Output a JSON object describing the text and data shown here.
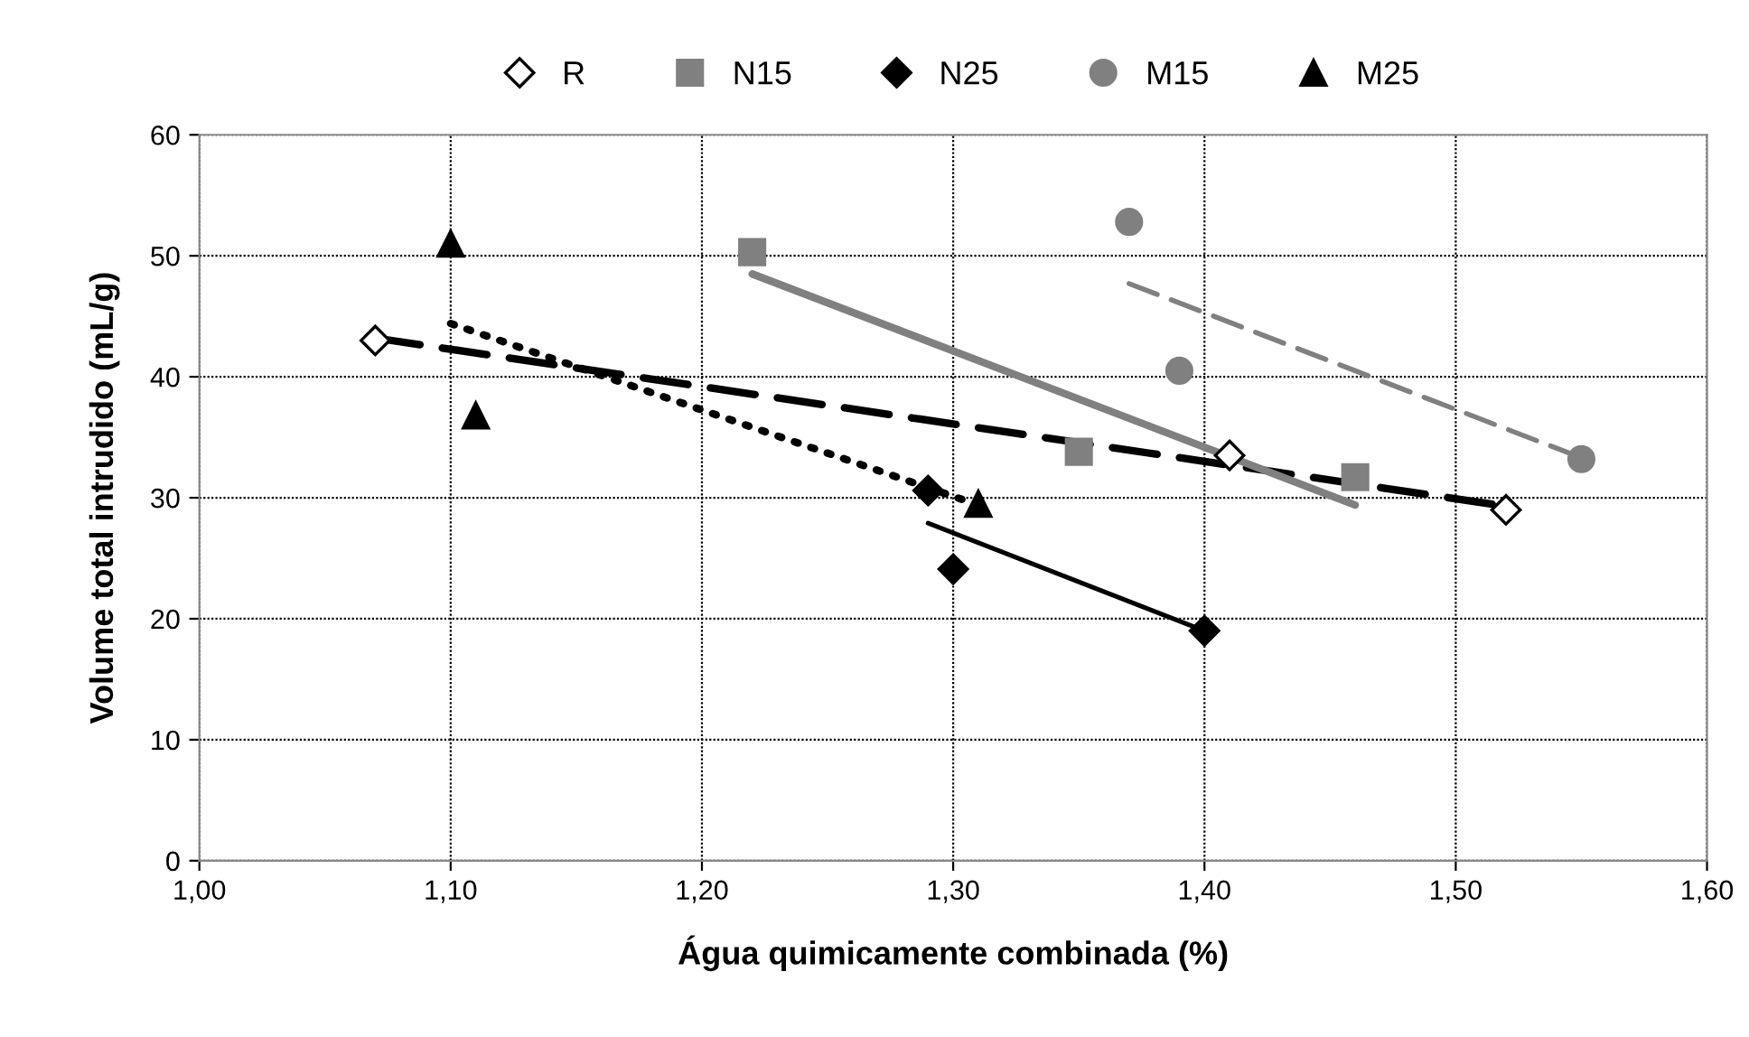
{
  "chart_data": {
    "type": "scatter",
    "xlabel": "Água quimicamente combinada (%)",
    "ylabel": "Volume total intrudido (mL/g)",
    "xlim": [
      1.0,
      1.6
    ],
    "xticks": [
      {
        "value": 1.0,
        "label": "1,00"
      },
      {
        "value": 1.1,
        "label": "1,10"
      },
      {
        "value": 1.2,
        "label": "1,20"
      },
      {
        "value": 1.3,
        "label": "1,30"
      },
      {
        "value": 1.4,
        "label": "1,40"
      },
      {
        "value": 1.5,
        "label": "1,50"
      },
      {
        "value": 1.6,
        "label": "1,60"
      }
    ],
    "ylim": [
      0,
      60
    ],
    "yticks": [
      0,
      10,
      20,
      30,
      40,
      50,
      60
    ],
    "grid": true,
    "legend": "top",
    "series": [
      {
        "name": "R",
        "color": "#000000",
        "marker": "diamond",
        "x": [
          1.07,
          1.41,
          1.52
        ],
        "values": [
          43,
          33.5,
          29
        ]
      },
      {
        "name": "N15",
        "color": "#808080",
        "marker": "square",
        "x": [
          1.22,
          1.35,
          1.46
        ],
        "values": [
          50.3,
          33.8,
          31.7
        ]
      },
      {
        "name": "N25",
        "color": "#000000",
        "marker": "diamond",
        "x": [
          1.29,
          1.3,
          1.4
        ],
        "values": [
          30.6,
          24.1,
          19
        ]
      },
      {
        "name": "M15",
        "color": "#808080",
        "marker": "circle",
        "x": [
          1.37,
          1.39,
          1.55
        ],
        "values": [
          52.8,
          40.5,
          33.2
        ]
      },
      {
        "name": "M25",
        "color": "#000000",
        "marker": "triangle",
        "x": [
          1.1,
          1.11,
          1.31
        ],
        "values": [
          51,
          36.8,
          29.5
        ]
      },
      {
        "type": "line",
        "color": "#000000",
        "line_style": "dashed",
        "x": [
          1.07,
          1.52
        ],
        "values": [
          43.2,
          29.3
        ]
      },
      {
        "type": "line",
        "color": "#808080",
        "line_style": "solid",
        "x": [
          1.22,
          1.46
        ],
        "values": [
          48.5,
          29.4
        ]
      },
      {
        "type": "line",
        "color": "#000000",
        "line_style": "solid",
        "x": [
          1.29,
          1.4
        ],
        "values": [
          27.9,
          19
        ]
      },
      {
        "type": "line",
        "color": "#808080",
        "line_style": "dashed",
        "x": [
          1.37,
          1.55
        ],
        "values": [
          47.7,
          33.3
        ]
      },
      {
        "type": "line",
        "color": "#000000",
        "line_style": "dotted",
        "x": [
          1.1,
          1.31
        ],
        "values": [
          44.4,
          29.4
        ]
      }
    ]
  }
}
